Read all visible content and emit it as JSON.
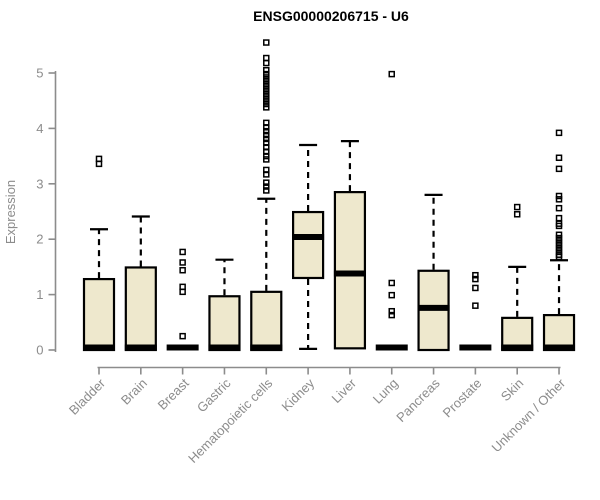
{
  "page": {
    "background": "#ffffff"
  },
  "chart_data": {
    "type": "boxplot",
    "title": "ENSG00000206715 - U6",
    "xlabel": "",
    "ylabel": "Expression",
    "ylim": [
      0,
      5.6
    ],
    "yticks": [
      0,
      1,
      2,
      3,
      4,
      5
    ],
    "grid": false,
    "legend": null,
    "colors": {
      "box_fill": "#EEE8CD",
      "box_stroke": "#000000",
      "median": "#000000",
      "axis": "#8C8C8C",
      "tick_label": "#8C8C8C",
      "title": "#000000"
    },
    "categories": [
      "Bladder",
      "Brain",
      "Breast",
      "Gastric",
      "Hematopoietic cells",
      "Kidney",
      "Liver",
      "Lung",
      "Pancreas",
      "Prostate",
      "Skin",
      "Unknown / Other"
    ],
    "series": [
      {
        "name": "Bladder",
        "q1": 0,
        "median": 0.02,
        "q3": 1.28,
        "whisker_low": 0,
        "whisker_high": 2.18,
        "outliers": [
          3.36,
          3.45
        ]
      },
      {
        "name": "Brain",
        "q1": 0,
        "median": 0.02,
        "q3": 1.49,
        "whisker_low": 0,
        "whisker_high": 2.41,
        "outliers": []
      },
      {
        "name": "Breast",
        "q1": 0,
        "median": 0.02,
        "q3": 0,
        "whisker_low": 0,
        "whisker_high": 0,
        "outliers": [
          0.25,
          1.05,
          1.14,
          1.44,
          1.58,
          1.77
        ]
      },
      {
        "name": "Gastric",
        "q1": 0,
        "median": 0.02,
        "q3": 0.97,
        "whisker_low": 0,
        "whisker_high": 1.63,
        "outliers": []
      },
      {
        "name": "Hematopoietic cells",
        "q1": 0,
        "median": 0.02,
        "q3": 1.05,
        "whisker_low": 0,
        "whisker_high": 2.73,
        "outliers": [
          2.88,
          2.95,
          3.02,
          3.17,
          3.25,
          3.44,
          3.5,
          3.58,
          3.66,
          3.74,
          3.81,
          3.88,
          3.95,
          4.02,
          4.1,
          4.38,
          4.44,
          4.5,
          4.56,
          4.62,
          4.68,
          4.74,
          4.8,
          4.86,
          4.92,
          4.98,
          5.05,
          5.18,
          5.27,
          5.55
        ]
      },
      {
        "name": "Kidney",
        "q1": 1.3,
        "median": 2.04,
        "q3": 2.49,
        "whisker_low": 0.02,
        "whisker_high": 3.7,
        "outliers": []
      },
      {
        "name": "Liver",
        "q1": 0.03,
        "median": 1.38,
        "q3": 2.85,
        "whisker_low": 0.03,
        "whisker_high": 3.77,
        "outliers": []
      },
      {
        "name": "Lung",
        "q1": 0,
        "median": 0.02,
        "q3": 0,
        "whisker_low": 0,
        "whisker_high": 0,
        "outliers": [
          0.63,
          0.7,
          0.99,
          1.21,
          4.98
        ]
      },
      {
        "name": "Pancreas",
        "q1": 0,
        "median": 0.76,
        "q3": 1.43,
        "whisker_low": 0,
        "whisker_high": 2.8,
        "outliers": []
      },
      {
        "name": "Prostate",
        "q1": 0,
        "median": 0.02,
        "q3": 0,
        "whisker_low": 0,
        "whisker_high": 0,
        "outliers": [
          0.8,
          1.12,
          1.28,
          1.35
        ]
      },
      {
        "name": "Skin",
        "q1": 0,
        "median": 0.02,
        "q3": 0.58,
        "whisker_low": 0,
        "whisker_high": 1.5,
        "outliers": [
          2.45,
          2.58
        ]
      },
      {
        "name": "Unknown / Other",
        "q1": 0,
        "median": 0.02,
        "q3": 0.63,
        "whisker_low": 0,
        "whisker_high": 1.62,
        "outliers": [
          1.68,
          1.72,
          1.78,
          1.84,
          1.9,
          1.96,
          2.02,
          2.08,
          2.24,
          2.28,
          2.38,
          2.56,
          2.72,
          2.78,
          3.27,
          3.47,
          3.92
        ]
      }
    ]
  }
}
